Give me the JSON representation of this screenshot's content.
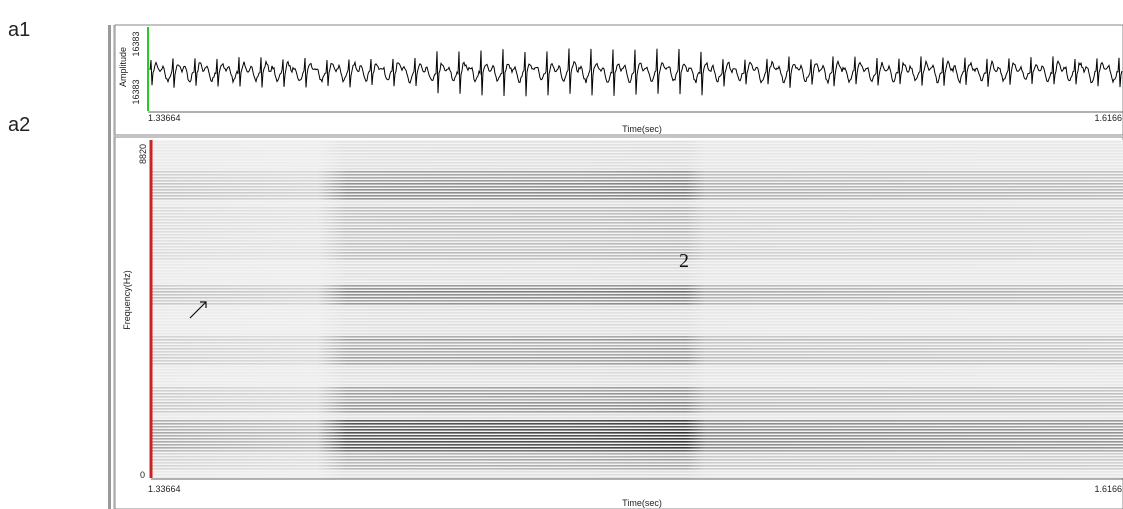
{
  "labels": {
    "top": "a1",
    "bottom": "a2"
  },
  "waveform": {
    "y_label": "Amplitude",
    "y_top": "16383",
    "y_bottom": "16383",
    "x_start": "1.33664",
    "x_end": "1.6166",
    "x_label": "Time(sec)"
  },
  "spectrogram": {
    "y_label": "Frequency(Hz)",
    "y_top": "8820",
    "y_bottom": "0",
    "x_start": "1.33664",
    "x_end": "1.6166",
    "x_label": "Time(sec)",
    "annotation": "2"
  }
}
